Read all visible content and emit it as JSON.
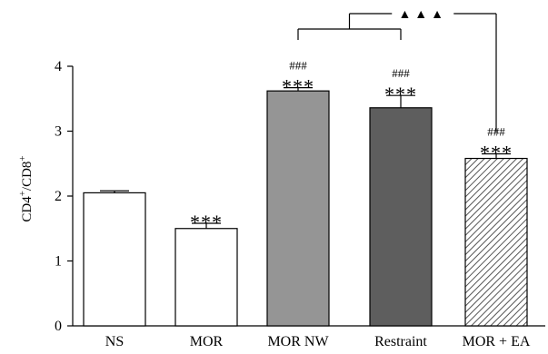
{
  "chart_data": {
    "type": "bar",
    "title": "",
    "xlabel": "",
    "ylabel": {
      "base": "CD4",
      "sup1": "+",
      "mid": "/CD8",
      "sup2": "+"
    },
    "ylim": [
      0,
      4
    ],
    "yticks": [
      "0",
      "1",
      "2",
      "3",
      "4"
    ],
    "categories": [
      "NS",
      "MOR",
      "MOR NW",
      "Restraint",
      "MOR + EA"
    ],
    "values": [
      2.05,
      1.5,
      3.62,
      3.36,
      2.58
    ],
    "errors": [
      0.03,
      0.08,
      0.05,
      0.19,
      0.07
    ],
    "fills": [
      "white",
      "white",
      "light-gray",
      "dark-gray",
      "hatched"
    ],
    "colors": {
      "white": "#ffffff",
      "light-gray": "#959595",
      "dark-gray": "#5e5e5e",
      "hatch-line": "#555555",
      "stroke": "#000000"
    },
    "stars": [
      "",
      "***",
      "***",
      "***",
      "***"
    ],
    "hashes": [
      "",
      "",
      "###",
      "###",
      "###"
    ],
    "bracket": {
      "label": "▲▲▲",
      "groups": [
        2,
        3
      ],
      "target": 4
    },
    "grid": false,
    "legend": "none"
  }
}
